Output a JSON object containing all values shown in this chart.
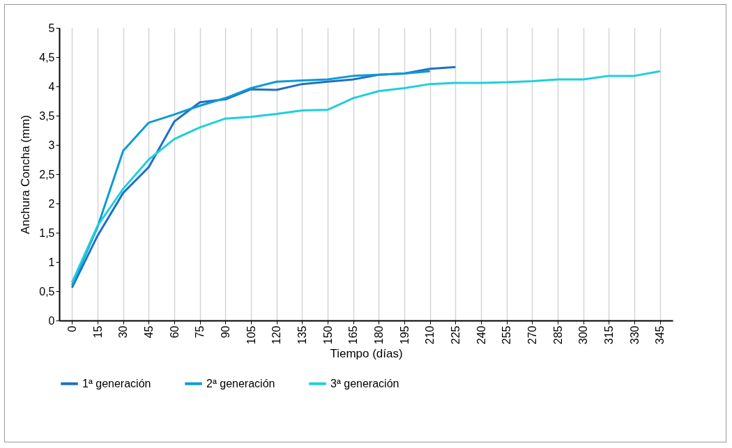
{
  "chart_data": {
    "type": "line",
    "xlabel": "Tiempo (días)",
    "ylabel": "Anchura Concha (mm)",
    "categories": [
      "0",
      "15",
      "30",
      "45",
      "60",
      "75",
      "90",
      "105",
      "120",
      "135",
      "150",
      "165",
      "180",
      "195",
      "210",
      "225",
      "240",
      "255",
      "270",
      "285",
      "300",
      "315",
      "330",
      "345"
    ],
    "ylim": [
      0,
      5
    ],
    "yticks": [
      0,
      {
        "value": 0.5,
        "label": "0,5"
      },
      1,
      {
        "value": 1.5,
        "label": "1,5"
      },
      2,
      {
        "value": 2.5,
        "label": "2,5"
      },
      3,
      {
        "value": 3.5,
        "label": "3,5"
      },
      4,
      {
        "value": 4.5,
        "label": "4,5"
      },
      5
    ],
    "grid": "x",
    "legend": "bottom",
    "line_style": "solid",
    "series": [
      {
        "name": "1ª generación",
        "color": "#1f6fc5",
        "values": [
          0.56,
          1.45,
          2.18,
          2.62,
          3.4,
          3.73,
          3.78,
          3.95,
          3.94,
          4.04,
          4.08,
          4.12,
          4.2,
          4.22,
          4.3,
          4.33,
          null,
          null,
          null,
          null,
          null,
          null,
          null,
          null
        ]
      },
      {
        "name": "2ª generación",
        "color": "#0b9ad8",
        "values": [
          0.6,
          1.6,
          2.9,
          3.38,
          3.52,
          3.67,
          3.8,
          3.97,
          4.08,
          4.1,
          4.12,
          4.18,
          4.2,
          4.22,
          4.26,
          null,
          null,
          null,
          null,
          null,
          null,
          null,
          null,
          null
        ]
      },
      {
        "name": "3ª generación",
        "color": "#1ecfdc",
        "values": [
          0.65,
          1.62,
          2.25,
          2.75,
          3.1,
          3.3,
          3.45,
          3.48,
          3.53,
          3.59,
          3.6,
          3.8,
          3.92,
          3.97,
          4.04,
          4.06,
          4.06,
          4.07,
          4.09,
          4.12,
          4.12,
          4.18,
          4.18,
          4.26
        ]
      }
    ]
  }
}
